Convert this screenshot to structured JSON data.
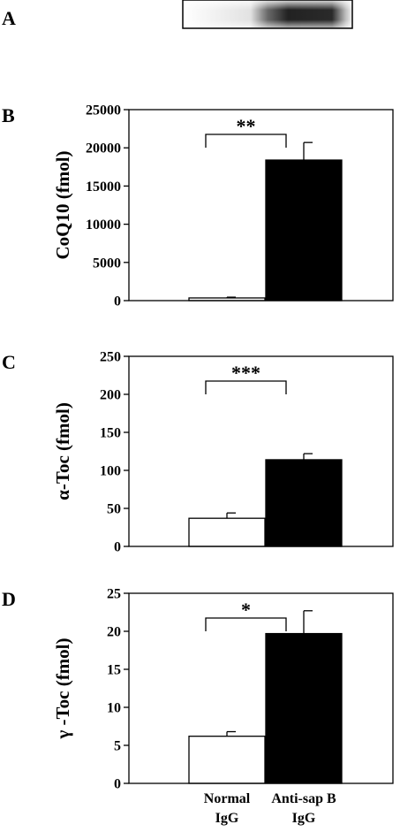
{
  "panel_a": {
    "label": "A"
  },
  "chart_data": [
    {
      "type": "bar",
      "panel_label": "B",
      "categories": [
        "Normal IgG",
        "Anti-sap B IgG"
      ],
      "values": [
        350,
        18400
      ],
      "errors": [
        100,
        2300
      ],
      "bar_colors": [
        "#ffffff",
        "#000000"
      ],
      "ylabel": "CoQ10 (fmol)",
      "ylim": [
        0,
        25000
      ],
      "yticks": [
        0,
        5000,
        10000,
        15000,
        20000,
        25000
      ],
      "significance": "**",
      "show_xlabels": false
    },
    {
      "type": "bar",
      "panel_label": "C",
      "categories": [
        "Normal IgG",
        "Anti-sap B IgG"
      ],
      "values": [
        37,
        114
      ],
      "errors": [
        7,
        8
      ],
      "bar_colors": [
        "#ffffff",
        "#000000"
      ],
      "ylabel": "α-Toc (fmol)",
      "ylim": [
        0,
        250
      ],
      "yticks": [
        0,
        50,
        100,
        150,
        200,
        250
      ],
      "significance": "***",
      "show_xlabels": false
    },
    {
      "type": "bar",
      "panel_label": "D",
      "categories": [
        "Normal IgG",
        "Anti-sap B IgG"
      ],
      "category_lines": [
        [
          "Normal",
          "IgG"
        ],
        [
          "Anti-sap B",
          "IgG"
        ]
      ],
      "values": [
        6.2,
        19.7
      ],
      "errors": [
        0.6,
        3.0
      ],
      "bar_colors": [
        "#ffffff",
        "#000000"
      ],
      "ylabel": "γ -Toc (fmol)",
      "ylim": [
        0,
        25
      ],
      "yticks": [
        0,
        5,
        10,
        15,
        20,
        25
      ],
      "significance": "*",
      "show_xlabels": true
    }
  ]
}
